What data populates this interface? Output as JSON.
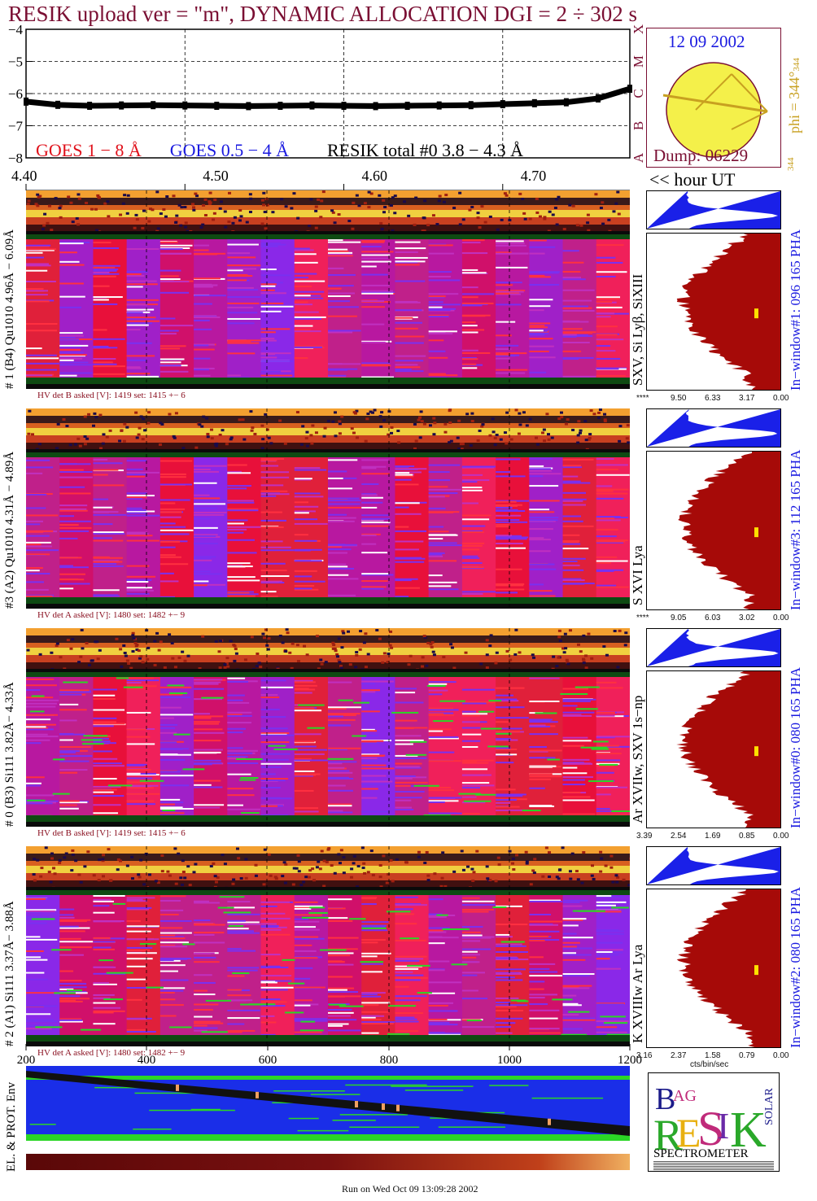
{
  "title": "RESIK upload ver = \"m\", DYNAMIC ALLOCATION  DGI =   2 ÷ 302 s",
  "date": "12 09 2002",
  "dump": "Dump: 06229",
  "phi_label": "phi = 344°",
  "phi_small": "344",
  "goes_panel": {
    "y_ticks": [
      "−4",
      "−5",
      "−6",
      "−7",
      "−8"
    ],
    "class_letters": [
      "X",
      "M",
      "C",
      "B",
      "A"
    ],
    "legend": [
      {
        "text": "GOES 1 − 8 Å",
        "color": "#e0101a"
      },
      {
        "text": "GOES 0.5 − 4 Å",
        "color": "#1a1ae0"
      },
      {
        "text": "RESIK total #0  3.8 − 4.3 Å",
        "color": "#000000"
      }
    ],
    "x_ticks": [
      "4.40",
      "4.50",
      "4.60",
      "4.70"
    ],
    "x_unit": "<< hour UT"
  },
  "panels": [
    {
      "id": "p1",
      "left_label": "# 1 (B4) Qu1010 4.96Å − 6.09Å",
      "line_label": "SXV, Si Lyβ, SiXIII",
      "window_label": "In−window#1:  096 165 PHA",
      "hv": "HV det B asked [V]:  1419 set:  1415 +−    6",
      "pha_ticks": [
        "****",
        "9.50",
        "6.33",
        "3.17",
        "0.00"
      ]
    },
    {
      "id": "p3",
      "left_label": "#3 (A2) Qu1010 4.31Å − 4.89Å",
      "line_label": "S XVI Lya",
      "window_label": "In−window#3:  112 165 PHA",
      "hv": "HV det A asked [V]:  1480 set:  1482 +−    9",
      "pha_ticks": [
        "****",
        "9.05",
        "6.03",
        "3.02",
        "0.00"
      ]
    },
    {
      "id": "p0",
      "left_label": "# 0 (B3) Si111  3.82Å− 4.33Å",
      "line_label": "Ar XVIIw, SXV 1s−np",
      "window_label": "In−window#0:  080 165 PHA",
      "hv": "HV det B asked [V]:  1419 set:  1415 +−    6",
      "pha_ticks": [
        "3.39",
        "2.54",
        "1.69",
        "0.85",
        "0.00"
      ]
    },
    {
      "id": "p2",
      "left_label": "# 2 (A1) Si111  3.37Å− 3.88Å",
      "line_label": "K XVIIIw  Ar Lya",
      "window_label": "In−window#2:  080 165 PHA",
      "hv": "HV det A asked [V]:  1480 set:  1482 +−    9",
      "pha_ticks": [
        "3.16",
        "2.37",
        "1.58",
        "0.79",
        "0.00"
      ]
    }
  ],
  "pha_axis_label": "cts/bin/sec",
  "bottom_axis_ticks": [
    "200",
    "400",
    "600",
    "800",
    "1000",
    "1200"
  ],
  "env_label": "EL. & PROT. Env",
  "logo": {
    "letters": [
      "B",
      "R",
      "E",
      "S",
      "I",
      "K",
      "AG",
      "SOLAR"
    ],
    "caption": "SPECTROMETER"
  },
  "footer": "Run on Wed Oct 09 13:09:28 2002",
  "chart_data": {
    "type": "line",
    "title": "RESIK upload ver = \"m\", DYNAMIC ALLOCATION  DGI =   2 ÷ 302 s",
    "xlabel": "<< hour UT",
    "ylabel": "",
    "xlim": [
      4.4,
      4.78
    ],
    "ylim": [
      -8,
      -4
    ],
    "grid": true,
    "x": [
      4.4,
      4.42,
      4.44,
      4.46,
      4.48,
      4.5,
      4.52,
      4.54,
      4.56,
      4.58,
      4.6,
      4.62,
      4.64,
      4.66,
      4.68,
      4.7,
      4.72,
      4.74,
      4.76,
      4.78
    ],
    "series": [
      {
        "name": "RESIK total #0  3.8 − 4.3 Å",
        "values": [
          -6.25,
          -6.35,
          -6.38,
          -6.37,
          -6.36,
          -6.37,
          -6.38,
          -6.39,
          -6.38,
          -6.37,
          -6.38,
          -6.39,
          -6.38,
          -6.37,
          -6.36,
          -6.33,
          -6.3,
          -6.27,
          -6.15,
          -5.85
        ]
      }
    ]
  },
  "colors": {
    "title": "#7a0f33",
    "date": "#1a1ae0",
    "sun": "#f4f04a",
    "arrow": "#c8a020",
    "pha_fill": "#a60a08",
    "pha_top": "#1a20e8"
  }
}
